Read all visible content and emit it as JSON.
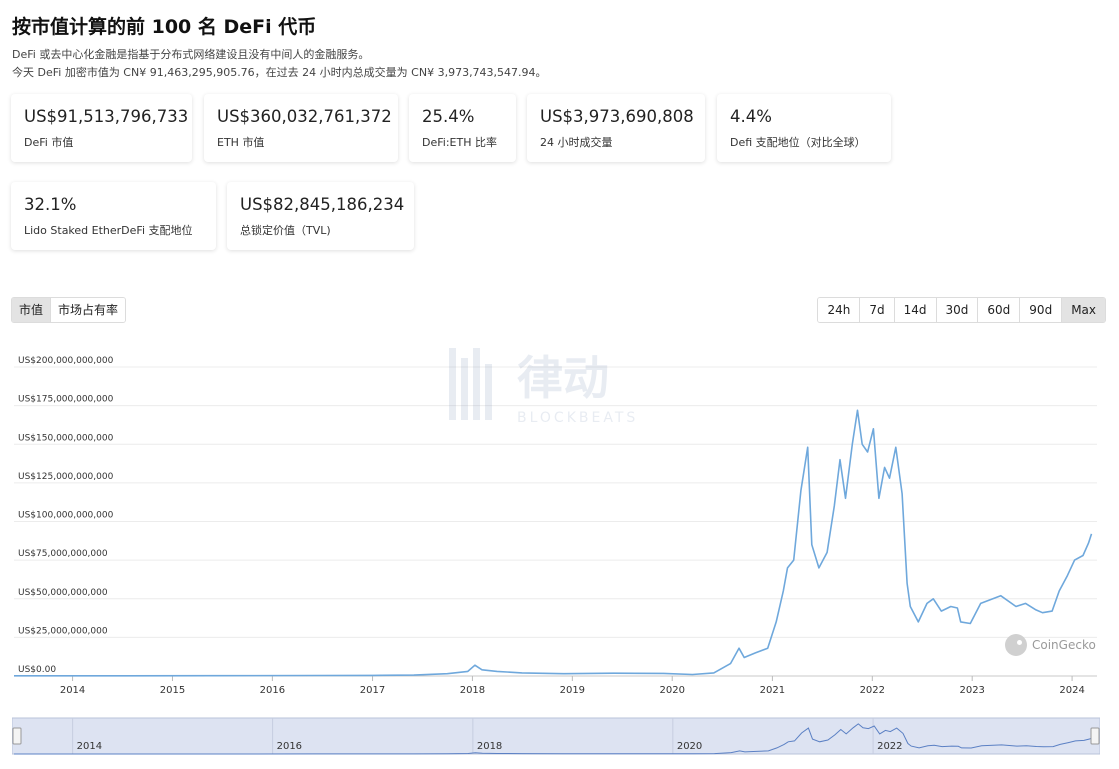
{
  "header": {
    "title": "按市值计算的前 100 名 DeFi 代币",
    "desc1": "DeFi 或去中心化金融是指基于分布式网络建设且没有中间人的金融服务。",
    "desc2": "今天 DeFi 加密市值为 CN¥ 91,463,295,905.76，在过去 24 小时内总成交量为 CN¥ 3,973,743,547.94。"
  },
  "stats": [
    {
      "value": "US$91,513,796,733",
      "label": "DeFi 市值"
    },
    {
      "value": "US$360,032,761,372",
      "label": "ETH 市值"
    },
    {
      "value": "25.4%",
      "label": "DeFi:ETH 比率"
    },
    {
      "value": "US$3,973,690,808",
      "label": "24 小时成交量"
    },
    {
      "value": "4.4%",
      "label": "Defi 支配地位（对比全球）"
    },
    {
      "value": "32.1%",
      "label": "Lido Staked EtherDeFi 支配地位"
    },
    {
      "value": "US$82,845,186,234",
      "label": "总锁定价值（TVL)"
    }
  ],
  "tabs": [
    {
      "label": "市值",
      "active": true
    },
    {
      "label": "市场占有率",
      "active": false
    }
  ],
  "ranges": [
    {
      "label": "24h",
      "active": false
    },
    {
      "label": "7d",
      "active": false
    },
    {
      "label": "14d",
      "active": false
    },
    {
      "label": "30d",
      "active": false
    },
    {
      "label": "60d",
      "active": false
    },
    {
      "label": "90d",
      "active": false
    },
    {
      "label": "Max",
      "active": true
    }
  ],
  "watermark": {
    "brand": "律动",
    "sub": "BLOCKBEATS"
  },
  "credit": "CoinGecko",
  "chart_data": {
    "type": "line",
    "title": "",
    "xlabel": "",
    "ylabel": "",
    "ylim": [
      0,
      200000000000
    ],
    "xlim": [
      "2013-06-01",
      "2024-04-01"
    ],
    "y_ticks": [
      {
        "value": 0,
        "label": "US$0.00"
      },
      {
        "value": 25000000000,
        "label": "US$25,000,000,000"
      },
      {
        "value": 50000000000,
        "label": "US$50,000,000,000"
      },
      {
        "value": 75000000000,
        "label": "US$75,000,000,000"
      },
      {
        "value": 100000000000,
        "label": "US$100,000,000,000"
      },
      {
        "value": 125000000000,
        "label": "US$125,000,000,000"
      },
      {
        "value": 150000000000,
        "label": "US$150,000,000,000"
      },
      {
        "value": 175000000000,
        "label": "US$175,000,000,000"
      },
      {
        "value": 200000000000,
        "label": "US$200,000,000,000"
      }
    ],
    "x_ticks": [
      "2014",
      "2015",
      "2016",
      "2017",
      "2018",
      "2019",
      "2020",
      "2021",
      "2022",
      "2023",
      "2024"
    ],
    "navigator_ticks": [
      "2014",
      "2016",
      "2018",
      "2020",
      "2022"
    ],
    "grid": true,
    "line_color": "#6fa8dc",
    "series": [
      {
        "x": [
          "2013-06-01",
          "2014-06-01",
          "2015-06-01",
          "2016-06-01",
          "2017-01-01",
          "2017-06-01",
          "2017-10-01",
          "2017-12-15",
          "2018-01-10",
          "2018-02-05",
          "2018-04-01",
          "2018-07-01",
          "2018-12-01",
          "2019-06-01",
          "2019-12-01",
          "2020-03-15",
          "2020-06-01",
          "2020-08-01",
          "2020-09-01",
          "2020-09-20",
          "2020-11-01",
          "2020-12-15",
          "2021-01-15",
          "2021-02-10",
          "2021-02-25",
          "2021-03-20",
          "2021-04-15",
          "2021-05-10",
          "2021-05-25",
          "2021-06-20",
          "2021-07-20",
          "2021-08-15",
          "2021-09-05",
          "2021-09-25",
          "2021-10-20",
          "2021-11-08",
          "2021-11-25",
          "2021-12-15",
          "2022-01-05",
          "2022-01-25",
          "2022-02-15",
          "2022-03-05",
          "2022-03-28",
          "2022-04-20",
          "2022-05-08",
          "2022-05-20",
          "2022-06-18",
          "2022-07-20",
          "2022-08-12",
          "2022-09-10",
          "2022-10-15",
          "2022-11-08",
          "2022-11-20",
          "2022-12-25",
          "2023-02-01",
          "2023-04-15",
          "2023-06-10",
          "2023-07-15",
          "2023-08-20",
          "2023-09-15",
          "2023-10-20",
          "2023-11-15",
          "2023-12-15",
          "2024-01-10",
          "2024-02-10",
          "2024-03-01",
          "2024-03-12"
        ],
        "values": [
          100000000,
          150000000,
          200000000,
          300000000,
          400000000,
          600000000,
          1500000000,
          3000000000,
          7000000000,
          4000000000,
          3000000000,
          2000000000,
          1500000000,
          1800000000,
          1700000000,
          1000000000,
          2000000000,
          8000000000,
          18000000000,
          12000000000,
          15000000000,
          18000000000,
          35000000000,
          55000000000,
          70000000000,
          75000000000,
          120000000000,
          148000000000,
          85000000000,
          70000000000,
          80000000000,
          110000000000,
          140000000000,
          115000000000,
          150000000000,
          172000000000,
          150000000000,
          145000000000,
          160000000000,
          115000000000,
          135000000000,
          128000000000,
          148000000000,
          118000000000,
          60000000000,
          45000000000,
          35000000000,
          47000000000,
          50000000000,
          42000000000,
          45000000000,
          44000000000,
          35000000000,
          34000000000,
          47000000000,
          52000000000,
          45000000000,
          47000000000,
          43000000000,
          41000000000,
          42000000000,
          55000000000,
          65000000000,
          75000000000,
          78000000000,
          86000000000,
          92000000000
        ]
      }
    ]
  }
}
